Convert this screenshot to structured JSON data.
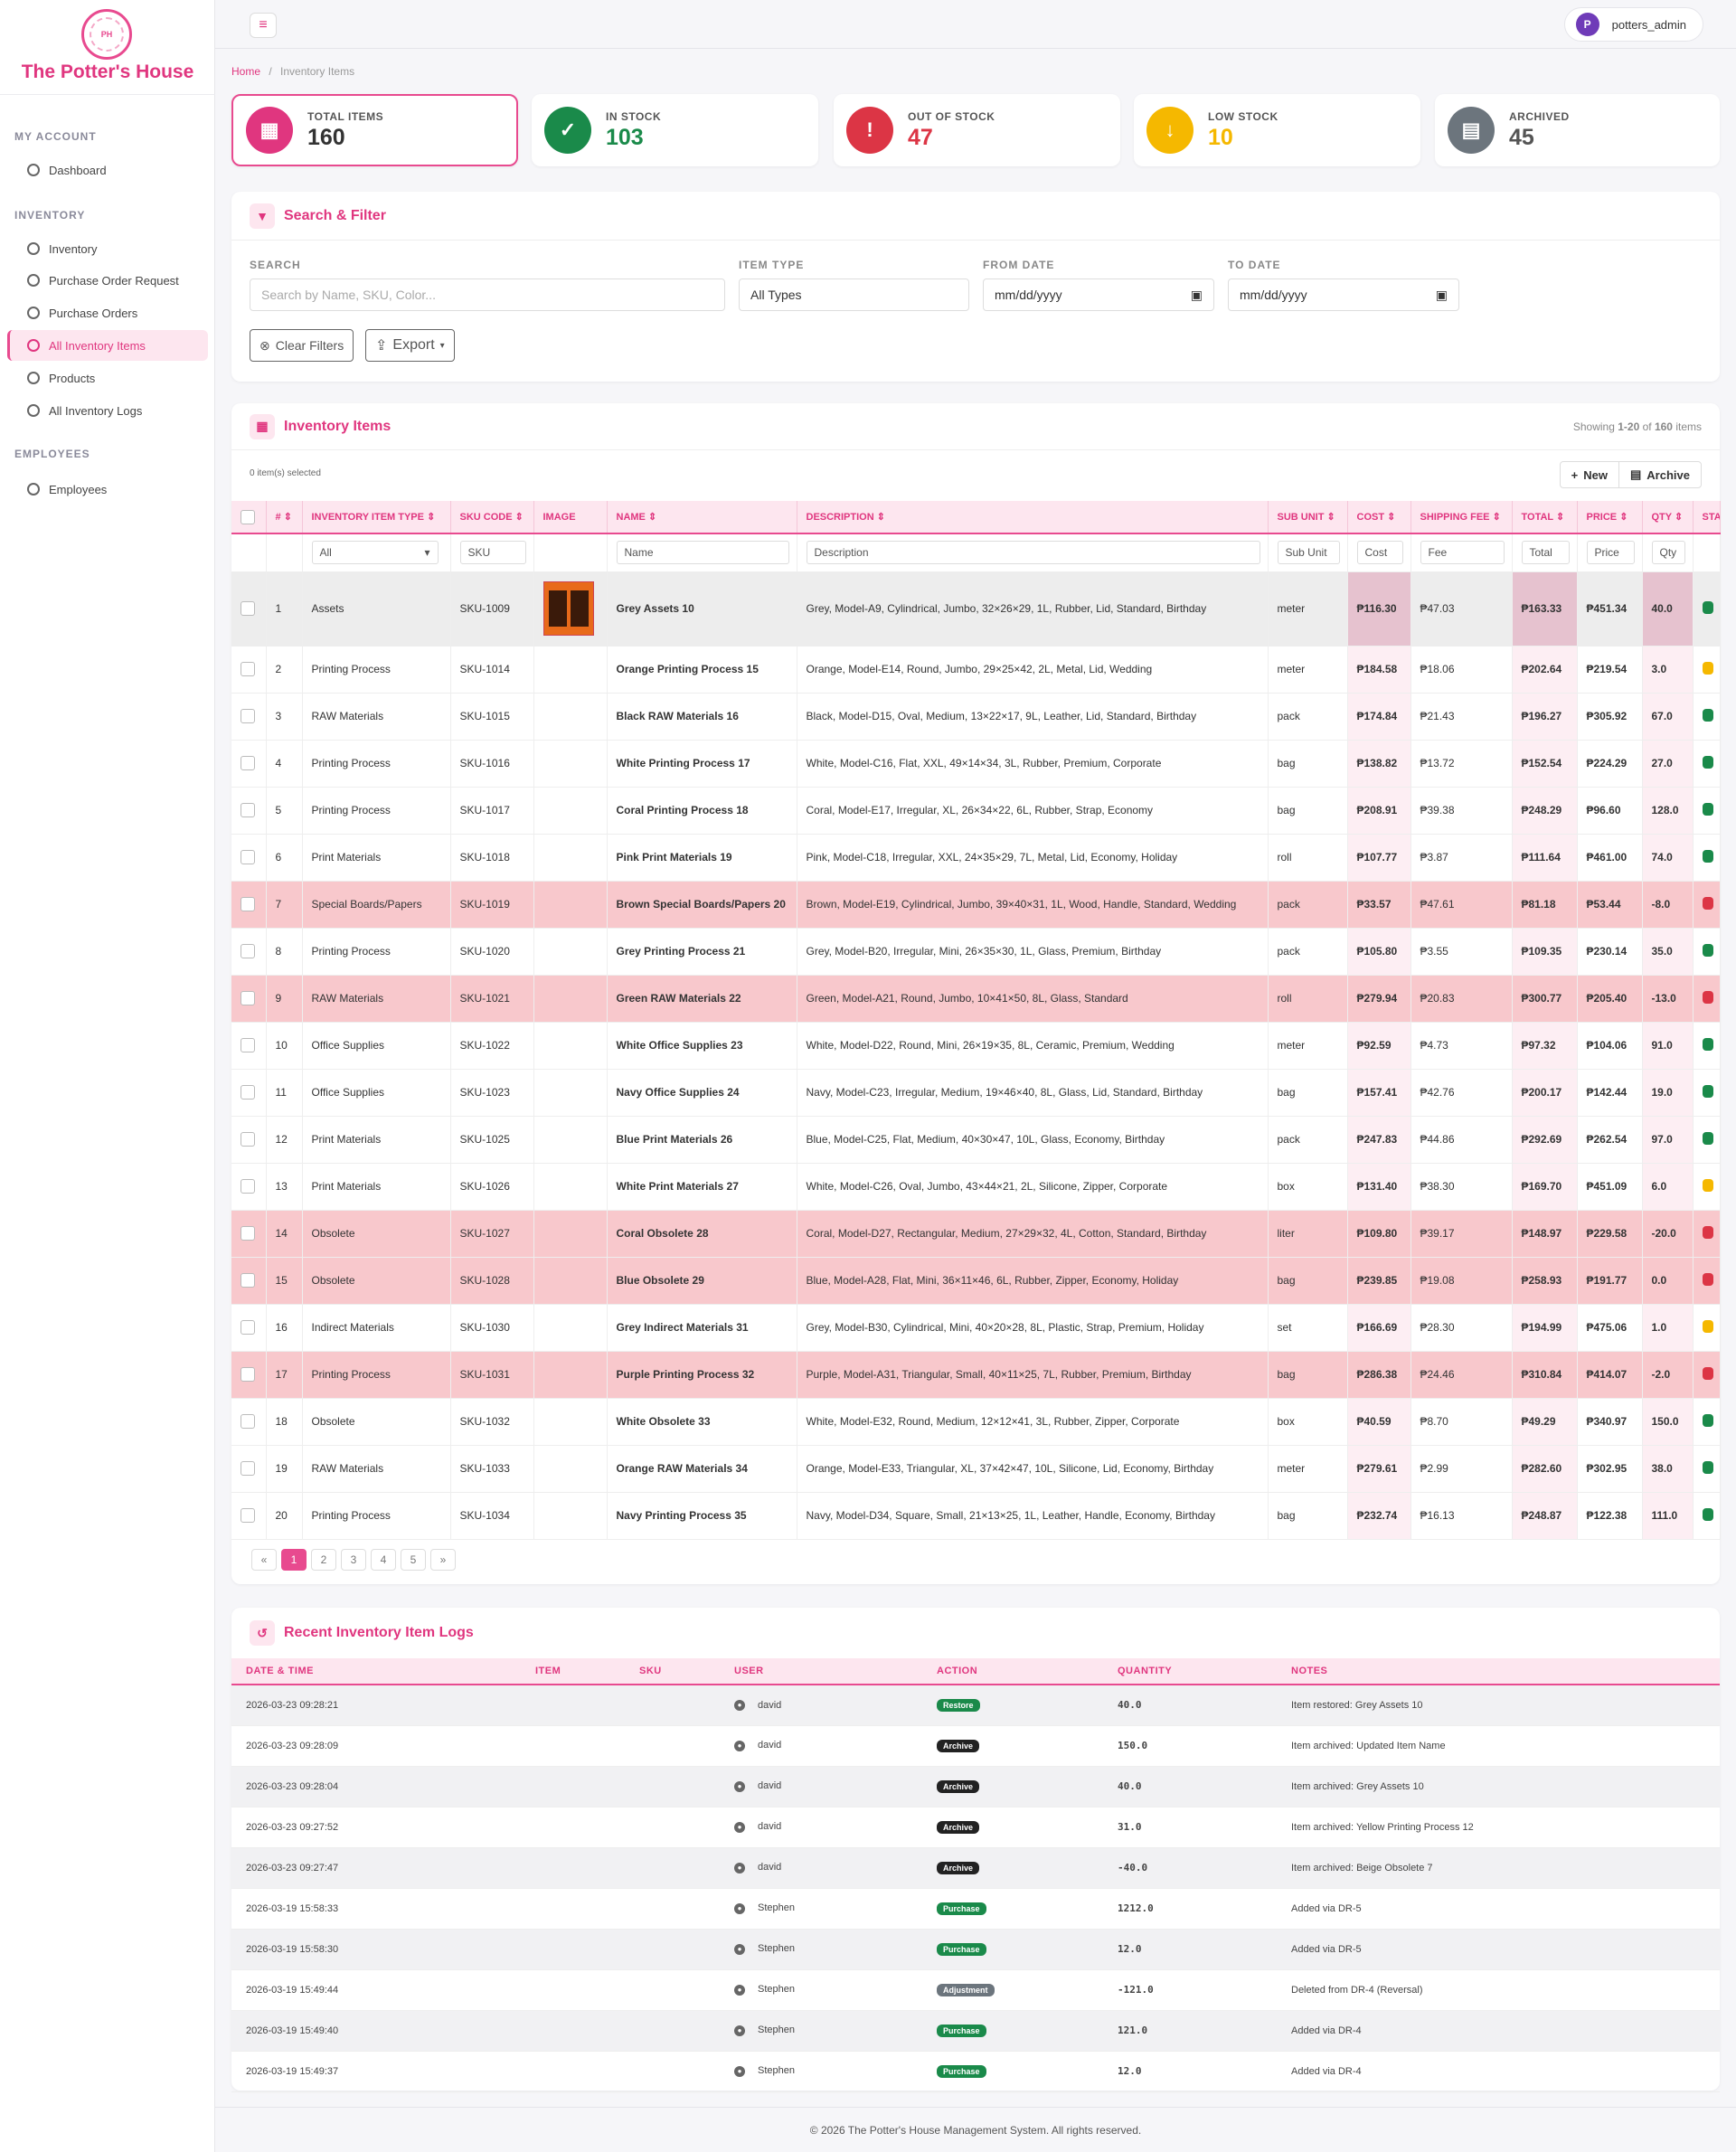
{
  "app": {
    "brand": "The Potter's House",
    "logo_text": "POTTER'S HOUSE"
  },
  "sidebar": {
    "sections": [
      "MY ACCOUNT",
      "INVENTORY",
      "EMPLOYEES"
    ],
    "items": [
      {
        "label": "Dashboard"
      },
      {
        "label": "Inventory"
      },
      {
        "label": "Purchase Order Request"
      },
      {
        "label": "Purchase Orders"
      },
      {
        "label": "All Inventory Items",
        "active": true
      },
      {
        "label": "Products"
      },
      {
        "label": "All Inventory Logs"
      },
      {
        "label": "Employees"
      }
    ]
  },
  "topbar": {
    "menu_icon": "hamburger-icon",
    "avatar_letter": "P",
    "username": "potters_admin"
  },
  "breadcrumb": {
    "home": "Home",
    "sep": "/",
    "current": "Inventory Items"
  },
  "stats": [
    {
      "label": "TOTAL ITEMS",
      "value": "160",
      "color": "#e0367f",
      "icon": "boxes-icon",
      "glyph": "▦"
    },
    {
      "label": "IN STOCK",
      "value": "103",
      "color": "#1a8a4a",
      "icon": "check-icon",
      "glyph": "✓"
    },
    {
      "label": "OUT OF STOCK",
      "value": "47",
      "color": "#dc3545",
      "icon": "warning-icon",
      "glyph": "!"
    },
    {
      "label": "LOW STOCK",
      "value": "10",
      "color": "#f5b800",
      "icon": "arrow-down-icon",
      "glyph": "↓"
    },
    {
      "label": "ARCHIVED",
      "value": "45",
      "color": "#6c757d",
      "icon": "archive-icon",
      "glyph": "▤"
    }
  ],
  "filter": {
    "title": "Search & Filter",
    "search_label": "SEARCH",
    "search_placeholder": "Search by Name, SKU, Color...",
    "type_label": "ITEM TYPE",
    "type_value": "All Types",
    "from_label": "FROM DATE",
    "from_value": "mm/dd/yyyy",
    "to_label": "TO DATE",
    "to_value": "mm/dd/yyyy",
    "clear_label": "Clear Filters",
    "export_label": "Export"
  },
  "items_card": {
    "title": "Inventory Items",
    "showing_prefix": "Showing ",
    "showing_range": "1-20",
    "showing_of": " of ",
    "showing_total": "160",
    "showing_suffix": " items",
    "selected": "0 item(s) selected",
    "new_label": "New",
    "archive_label": "Archive"
  },
  "table": {
    "columns": [
      "#",
      "INVENTORY ITEM TYPE",
      "SKU CODE",
      "IMAGE",
      "NAME",
      "DESCRIPTION",
      "SUB UNIT",
      "COST",
      "SHIPPING FEE",
      "TOTAL",
      "PRICE",
      "QTY",
      "STATUS"
    ],
    "filters": {
      "type": "All",
      "sku": "SKU",
      "name": "Name",
      "description": "Description",
      "sub_unit": "Sub Unit",
      "cost": "Cost",
      "fee": "Fee",
      "total": "Total",
      "price": "Price",
      "qty": "Qty"
    },
    "status_colors": {
      "in": "#1a8a4a",
      "low": "#f5b800",
      "out": "#dc3545"
    },
    "rows": [
      {
        "n": "1",
        "type": "Assets",
        "sku": "SKU-1009",
        "name": "Grey Assets 10",
        "desc": "Grey, Model-A9, Cylindrical, Jumbo, 32×26×29, 1L, Rubber, Lid, Standard, Birthday",
        "unit": "meter",
        "cost": "₱116.30",
        "fee": "₱47.03",
        "total": "₱163.33",
        "price": "₱451.34",
        "qty": "40.0",
        "status": "in",
        "image": true,
        "first": true
      },
      {
        "n": "2",
        "type": "Printing Process",
        "sku": "SKU-1014",
        "name": "Orange Printing Process 15",
        "desc": "Orange, Model-E14, Round, Jumbo, 29×25×42, 2L, Metal, Lid, Wedding",
        "unit": "meter",
        "cost": "₱184.58",
        "fee": "₱18.06",
        "total": "₱202.64",
        "price": "₱219.54",
        "qty": "3.0",
        "status": "low"
      },
      {
        "n": "3",
        "type": "RAW Materials",
        "sku": "SKU-1015",
        "name": "Black RAW Materials 16",
        "desc": "Black, Model-D15, Oval, Medium, 13×22×17, 9L, Leather, Lid, Standard, Birthday",
        "unit": "pack",
        "cost": "₱174.84",
        "fee": "₱21.43",
        "total": "₱196.27",
        "price": "₱305.92",
        "qty": "67.0",
        "status": "in"
      },
      {
        "n": "4",
        "type": "Printing Process",
        "sku": "SKU-1016",
        "name": "White Printing Process 17",
        "desc": "White, Model-C16, Flat, XXL, 49×14×34, 3L, Rubber, Premium, Corporate",
        "unit": "bag",
        "cost": "₱138.82",
        "fee": "₱13.72",
        "total": "₱152.54",
        "price": "₱224.29",
        "qty": "27.0",
        "status": "in"
      },
      {
        "n": "5",
        "type": "Printing Process",
        "sku": "SKU-1017",
        "name": "Coral Printing Process 18",
        "desc": "Coral, Model-E17, Irregular, XL, 26×34×22, 6L, Rubber, Strap, Economy",
        "unit": "bag",
        "cost": "₱208.91",
        "fee": "₱39.38",
        "total": "₱248.29",
        "price": "₱96.60",
        "qty": "128.0",
        "status": "in"
      },
      {
        "n": "6",
        "type": "Print Materials",
        "sku": "SKU-1018",
        "name": "Pink Print Materials 19",
        "desc": "Pink, Model-C18, Irregular, XXL, 24×35×29, 7L, Metal, Lid, Economy, Holiday",
        "unit": "roll",
        "cost": "₱107.77",
        "fee": "₱3.87",
        "total": "₱111.64",
        "price": "₱461.00",
        "qty": "74.0",
        "status": "in"
      },
      {
        "n": "7",
        "type": "Special Boards/Papers",
        "sku": "SKU-1019",
        "name": "Brown Special Boards/Papers 20",
        "desc": "Brown, Model-E19, Cylindrical, Jumbo, 39×40×31, 1L, Wood, Handle, Standard, Wedding",
        "unit": "pack",
        "cost": "₱33.57",
        "fee": "₱47.61",
        "total": "₱81.18",
        "price": "₱53.44",
        "qty": "-8.0",
        "status": "out",
        "neg": true
      },
      {
        "n": "8",
        "type": "Printing Process",
        "sku": "SKU-1020",
        "name": "Grey Printing Process 21",
        "desc": "Grey, Model-B20, Irregular, Mini, 26×35×30, 1L, Glass, Premium, Birthday",
        "unit": "pack",
        "cost": "₱105.80",
        "fee": "₱3.55",
        "total": "₱109.35",
        "price": "₱230.14",
        "qty": "35.0",
        "status": "in"
      },
      {
        "n": "9",
        "type": "RAW Materials",
        "sku": "SKU-1021",
        "name": "Green RAW Materials 22",
        "desc": "Green, Model-A21, Round, Jumbo, 10×41×50, 8L, Glass, Standard",
        "unit": "roll",
        "cost": "₱279.94",
        "fee": "₱20.83",
        "total": "₱300.77",
        "price": "₱205.40",
        "qty": "-13.0",
        "status": "out",
        "neg": true
      },
      {
        "n": "10",
        "type": "Office Supplies",
        "sku": "SKU-1022",
        "name": "White Office Supplies 23",
        "desc": "White, Model-D22, Round, Mini, 26×19×35, 8L, Ceramic, Premium, Wedding",
        "unit": "meter",
        "cost": "₱92.59",
        "fee": "₱4.73",
        "total": "₱97.32",
        "price": "₱104.06",
        "qty": "91.0",
        "status": "in"
      },
      {
        "n": "11",
        "type": "Office Supplies",
        "sku": "SKU-1023",
        "name": "Navy Office Supplies 24",
        "desc": "Navy, Model-C23, Irregular, Medium, 19×46×40, 8L, Glass, Lid, Standard, Birthday",
        "unit": "bag",
        "cost": "₱157.41",
        "fee": "₱42.76",
        "total": "₱200.17",
        "price": "₱142.44",
        "qty": "19.0",
        "status": "in"
      },
      {
        "n": "12",
        "type": "Print Materials",
        "sku": "SKU-1025",
        "name": "Blue Print Materials 26",
        "desc": "Blue, Model-C25, Flat, Medium, 40×30×47, 10L, Glass, Economy, Birthday",
        "unit": "pack",
        "cost": "₱247.83",
        "fee": "₱44.86",
        "total": "₱292.69",
        "price": "₱262.54",
        "qty": "97.0",
        "status": "in"
      },
      {
        "n": "13",
        "type": "Print Materials",
        "sku": "SKU-1026",
        "name": "White Print Materials 27",
        "desc": "White, Model-C26, Oval, Jumbo, 43×44×21, 2L, Silicone, Zipper, Corporate",
        "unit": "box",
        "cost": "₱131.40",
        "fee": "₱38.30",
        "total": "₱169.70",
        "price": "₱451.09",
        "qty": "6.0",
        "status": "low"
      },
      {
        "n": "14",
        "type": "Obsolete",
        "sku": "SKU-1027",
        "name": "Coral Obsolete 28",
        "desc": "Coral, Model-D27, Rectangular, Medium, 27×29×32, 4L, Cotton, Standard, Birthday",
        "unit": "liter",
        "cost": "₱109.80",
        "fee": "₱39.17",
        "total": "₱148.97",
        "price": "₱229.58",
        "qty": "-20.0",
        "status": "out",
        "neg": true
      },
      {
        "n": "15",
        "type": "Obsolete",
        "sku": "SKU-1028",
        "name": "Blue Obsolete 29",
        "desc": "Blue, Model-A28, Flat, Mini, 36×11×46, 6L, Rubber, Zipper, Economy, Holiday",
        "unit": "bag",
        "cost": "₱239.85",
        "fee": "₱19.08",
        "total": "₱258.93",
        "price": "₱191.77",
        "qty": "0.0",
        "status": "out",
        "neg": true
      },
      {
        "n": "16",
        "type": "Indirect Materials",
        "sku": "SKU-1030",
        "name": "Grey Indirect Materials 31",
        "desc": "Grey, Model-B30, Cylindrical, Mini, 40×20×28, 8L, Plastic, Strap, Premium, Holiday",
        "unit": "set",
        "cost": "₱166.69",
        "fee": "₱28.30",
        "total": "₱194.99",
        "price": "₱475.06",
        "qty": "1.0",
        "status": "low"
      },
      {
        "n": "17",
        "type": "Printing Process",
        "sku": "SKU-1031",
        "name": "Purple Printing Process 32",
        "desc": "Purple, Model-A31, Triangular, Small, 40×11×25, 7L, Rubber, Premium, Birthday",
        "unit": "bag",
        "cost": "₱286.38",
        "fee": "₱24.46",
        "total": "₱310.84",
        "price": "₱414.07",
        "qty": "-2.0",
        "status": "out",
        "neg": true
      },
      {
        "n": "18",
        "type": "Obsolete",
        "sku": "SKU-1032",
        "name": "White Obsolete 33",
        "desc": "White, Model-E32, Round, Medium, 12×12×41, 3L, Rubber, Zipper, Corporate",
        "unit": "box",
        "cost": "₱40.59",
        "fee": "₱8.70",
        "total": "₱49.29",
        "price": "₱340.97",
        "qty": "150.0",
        "status": "in"
      },
      {
        "n": "19",
        "type": "RAW Materials",
        "sku": "SKU-1033",
        "name": "Orange RAW Materials 34",
        "desc": "Orange, Model-E33, Triangular, XL, 37×42×47, 10L, Silicone, Lid, Economy, Birthday",
        "unit": "meter",
        "cost": "₱279.61",
        "fee": "₱2.99",
        "total": "₱282.60",
        "price": "₱302.95",
        "qty": "38.0",
        "status": "in"
      },
      {
        "n": "20",
        "type": "Printing Process",
        "sku": "SKU-1034",
        "name": "Navy Printing Process 35",
        "desc": "Navy, Model-D34, Square, Small, 21×13×25, 1L, Leather, Handle, Economy, Birthday",
        "unit": "bag",
        "cost": "₱232.74",
        "fee": "₱16.13",
        "total": "₱248.87",
        "price": "₱122.38",
        "qty": "111.0",
        "status": "in"
      }
    ]
  },
  "pagination": [
    "«",
    "1",
    "2",
    "3",
    "4",
    "5",
    "»"
  ],
  "logs": {
    "title": "Recent Inventory Item Logs",
    "columns": [
      "DATE & TIME",
      "ITEM",
      "SKU",
      "USER",
      "ACTION",
      "QUANTITY",
      "NOTES"
    ],
    "action_colors": {
      "Restore": "#1a8a4a",
      "Archive": "#222222",
      "Purchase": "#1a8a4a",
      "Adjustment": "#6c757d"
    },
    "rows": [
      {
        "dt": "2026-03-23 09:28:21",
        "user": "david",
        "action": "Restore",
        "qty": "40.0",
        "notes": "Item restored: Grey Assets 10"
      },
      {
        "dt": "2026-03-23 09:28:09",
        "user": "david",
        "action": "Archive",
        "qty": "150.0",
        "notes": "Item archived: Updated Item Name"
      },
      {
        "dt": "2026-03-23 09:28:04",
        "user": "david",
        "action": "Archive",
        "qty": "40.0",
        "notes": "Item archived: Grey Assets 10"
      },
      {
        "dt": "2026-03-23 09:27:52",
        "user": "david",
        "action": "Archive",
        "qty": "31.0",
        "notes": "Item archived: Yellow Printing Process 12"
      },
      {
        "dt": "2026-03-23 09:27:47",
        "user": "david",
        "action": "Archive",
        "qty": "-40.0",
        "notes": "Item archived: Beige Obsolete 7"
      },
      {
        "dt": "2026-03-19 15:58:33",
        "user": "Stephen",
        "action": "Purchase",
        "qty": "1212.0",
        "notes": "Added via DR-5"
      },
      {
        "dt": "2026-03-19 15:58:30",
        "user": "Stephen",
        "action": "Purchase",
        "qty": "12.0",
        "notes": "Added via DR-5"
      },
      {
        "dt": "2026-03-19 15:49:44",
        "user": "Stephen",
        "action": "Adjustment",
        "qty": "-121.0",
        "notes": "Deleted from DR-4 (Reversal)"
      },
      {
        "dt": "2026-03-19 15:49:40",
        "user": "Stephen",
        "action": "Purchase",
        "qty": "121.0",
        "notes": "Added via DR-4"
      },
      {
        "dt": "2026-03-19 15:49:37",
        "user": "Stephen",
        "action": "Purchase",
        "qty": "12.0",
        "notes": "Added via DR-4"
      }
    ]
  },
  "footer": "© 2026 The Potter's House Management System. All rights reserved."
}
